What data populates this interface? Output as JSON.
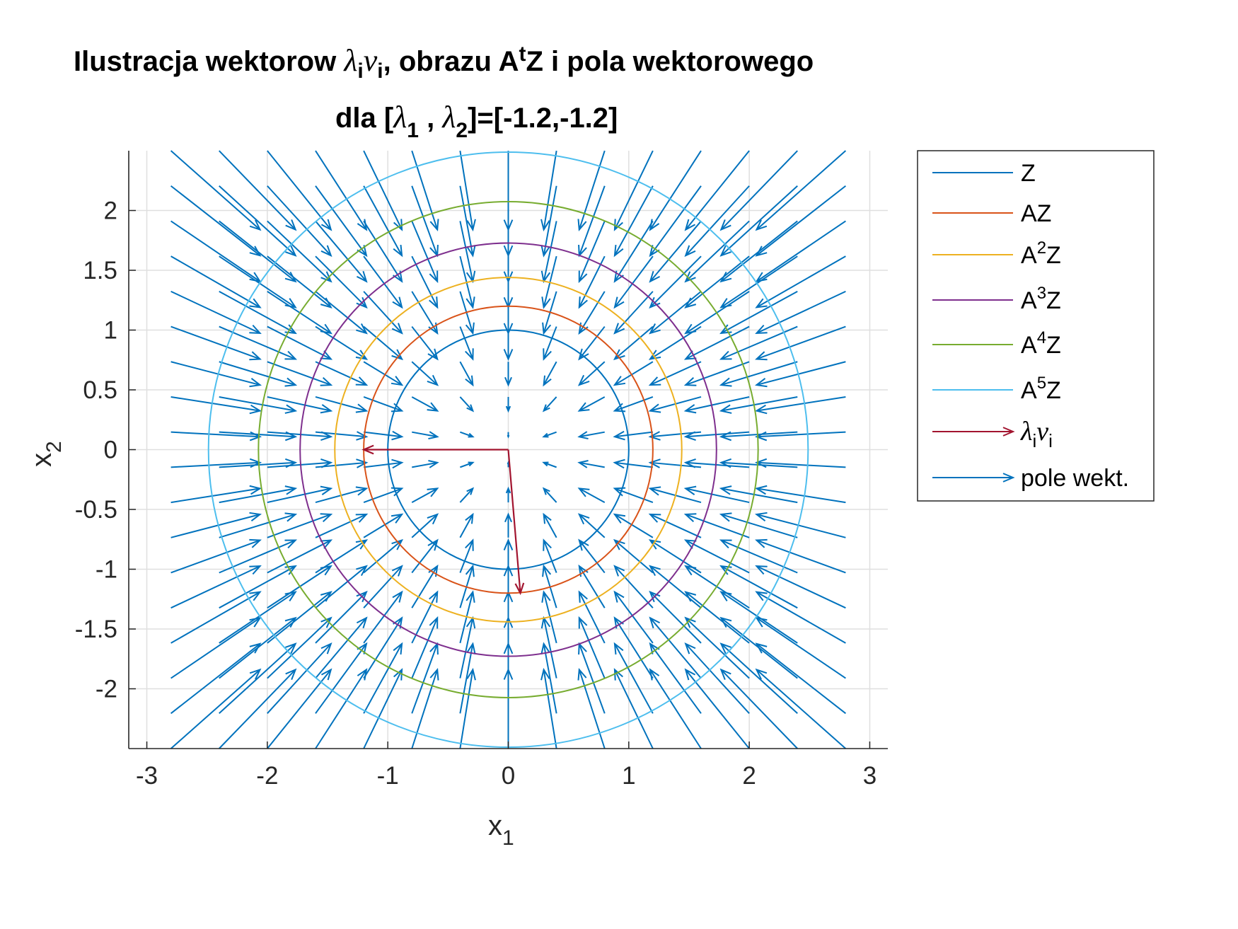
{
  "chart_data": {
    "type": "line",
    "title_line1": {
      "pre": "Ilustracja wektorow ",
      "lambda": "λ",
      "sub_i": "i",
      "nu": "ν",
      "sub_i2": "i",
      "mid": ", obrazu A",
      "sup_t": "t",
      "post": "Z i pola wektorowego"
    },
    "title_line2": {
      "pre": "dla [",
      "lambda1": "λ",
      "sub1": "1",
      "sep": " , ",
      "lambda2": "λ",
      "sub2": "2",
      "post": "]=[-1.2,-1.2]"
    },
    "xlabel": {
      "base": "x",
      "sub": "1"
    },
    "ylabel": {
      "base": "x",
      "sub": "2"
    },
    "xlim": [
      -3.15,
      3.15
    ],
    "ylim": [
      -2.5,
      2.5
    ],
    "xticks": [
      -3,
      -2,
      -1,
      0,
      1,
      2,
      3
    ],
    "xtick_labels": [
      "-3",
      "-2",
      "-1",
      "0",
      "1",
      "2",
      "3"
    ],
    "yticks": [
      -2,
      -1.5,
      -1,
      -0.5,
      0,
      0.5,
      1,
      1.5,
      2
    ],
    "ytick_labels": [
      "-2",
      "-1.5",
      "-1",
      "-0.5",
      "0",
      "0.5",
      "1",
      "1.5",
      "2"
    ],
    "grid": true,
    "legend_position": "outside-right-top",
    "series": [
      {
        "name": "Z",
        "type": "circle",
        "radius": 1.0,
        "color": "#0072BD"
      },
      {
        "name": "AZ",
        "type": "circle",
        "radius": 1.2,
        "color": "#D95319"
      },
      {
        "name": "A2Z",
        "type": "circle",
        "radius": 1.44,
        "color": "#EDB120"
      },
      {
        "name": "A3Z",
        "type": "circle",
        "radius": 1.728,
        "color": "#7E2F8E"
      },
      {
        "name": "A4Z",
        "type": "circle",
        "radius": 2.0736,
        "color": "#77AC30"
      },
      {
        "name": "A5Z",
        "type": "circle",
        "radius": 2.48832,
        "color": "#4DBEEE"
      }
    ],
    "eigen_vectors": {
      "color": "#A2142F",
      "vectors": [
        {
          "from": [
            0,
            0
          ],
          "to": [
            -1.2,
            0
          ]
        },
        {
          "from": [
            0,
            0
          ],
          "to": [
            0.1,
            -1.2
          ]
        }
      ]
    },
    "vector_field": {
      "color": "#0072BD",
      "x_start": -3.2,
      "x_step": 0.4,
      "x_count": 17,
      "y_start": -2.5,
      "y_step": 0.2941,
      "y_count": 18,
      "matrix": [
        [
          -1.2,
          0
        ],
        [
          0,
          -1.2
        ]
      ],
      "scale": 0.22
    },
    "legend": [
      {
        "kind": "line",
        "color": "#0072BD",
        "base": "Z",
        "sup": ""
      },
      {
        "kind": "line",
        "color": "#D95319",
        "base": "AZ",
        "sup": ""
      },
      {
        "kind": "line",
        "color": "#EDB120",
        "base": "A",
        "sup": "2",
        "tail": "Z"
      },
      {
        "kind": "line",
        "color": "#7E2F8E",
        "base": "A",
        "sup": "3",
        "tail": "Z"
      },
      {
        "kind": "line",
        "color": "#77AC30",
        "base": "A",
        "sup": "4",
        "tail": "Z"
      },
      {
        "kind": "line",
        "color": "#4DBEEE",
        "base": "A",
        "sup": "5",
        "tail": "Z"
      },
      {
        "kind": "arrow",
        "color": "#A2142F",
        "greek1": "λ",
        "sub1": "i",
        "greek2": "ν",
        "sub2": "i"
      },
      {
        "kind": "arrow",
        "color": "#0072BD",
        "base": "pole wekt."
      }
    ]
  }
}
